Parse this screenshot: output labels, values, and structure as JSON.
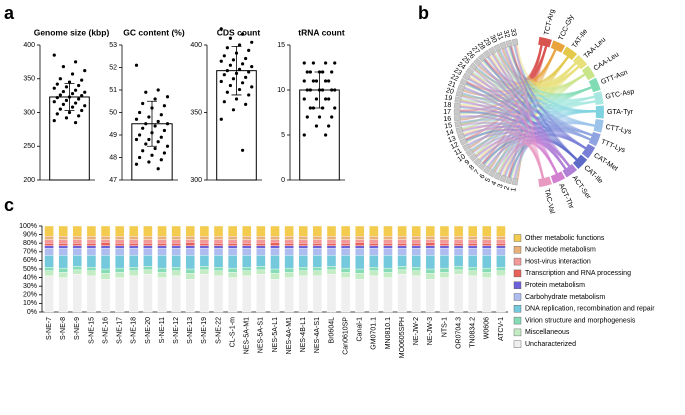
{
  "chart_data": [
    {
      "type": "bar",
      "panel": "a",
      "title": "Genome size (kbp)",
      "ylim": [
        200,
        400
      ],
      "yticks": [
        200,
        250,
        300,
        350,
        400
      ],
      "values": [
        323
      ],
      "errors": [
        20
      ],
      "bar_color": "#ffffff",
      "point_color": "#000000",
      "points": [
        385,
        375,
        368,
        362,
        357,
        350,
        348,
        345,
        342,
        340,
        338,
        336,
        333,
        331,
        330,
        328,
        326,
        325,
        323,
        322,
        320,
        318,
        316,
        314,
        312,
        310,
        308,
        305,
        303,
        300,
        298,
        295,
        292,
        288,
        285
      ]
    },
    {
      "type": "bar",
      "title": "GC content (%)",
      "ylim": [
        47,
        53
      ],
      "yticks": [
        47,
        48,
        49,
        50,
        51,
        52,
        53
      ],
      "values": [
        49.5
      ],
      "errors": [
        1.0
      ],
      "bar_color": "#ffffff",
      "point_color": "#000000",
      "points": [
        52.1,
        51.0,
        50.9,
        50.7,
        50.6,
        50.4,
        50.3,
        50.2,
        50.0,
        49.9,
        49.8,
        49.7,
        49.6,
        49.5,
        49.5,
        49.4,
        49.3,
        49.2,
        49.1,
        49.0,
        48.9,
        48.8,
        48.8,
        48.7,
        48.6,
        48.5,
        48.4,
        48.3,
        48.2,
        48.1,
        48.0,
        47.9,
        47.8,
        47.7,
        47.5
      ]
    },
    {
      "type": "bar",
      "title": "CDS count",
      "ylim": [
        300,
        400
      ],
      "yticks": [
        300,
        350,
        400
      ],
      "values": [
        381
      ],
      "errors": [
        18
      ],
      "bar_color": "#ffffff",
      "point_color": "#000000",
      "points": [
        412,
        408,
        405,
        402,
        400,
        398,
        396,
        394,
        392,
        390,
        389,
        388,
        386,
        385,
        384,
        382,
        381,
        380,
        379,
        378,
        376,
        375,
        373,
        372,
        370,
        369,
        367,
        365,
        363,
        360,
        358,
        356,
        352,
        345,
        322
      ]
    },
    {
      "type": "bar",
      "title": "tRNA count",
      "ylim": [
        0,
        15
      ],
      "yticks": [
        0,
        5,
        10,
        15
      ],
      "values": [
        10
      ],
      "errors": [
        2
      ],
      "bar_color": "#ffffff",
      "point_color": "#000000",
      "points": [
        13,
        13,
        13,
        13,
        12,
        12,
        12,
        12,
        12,
        11,
        11,
        11,
        11,
        11,
        10,
        10,
        10,
        10,
        10,
        10,
        9,
        9,
        9,
        9,
        8,
        8,
        8,
        8,
        7,
        7,
        7,
        6,
        6,
        5,
        5
      ]
    },
    {
      "type": "chord",
      "panel": "b",
      "labels": [
        "TCT-Arg",
        "TCC-Gly",
        "TAT-Ile",
        "TAA-Leu",
        "CAA-Leu",
        "GTT-Asn",
        "GTC-Asp",
        "GTA-Tyr",
        "CTT-Lys",
        "TTT-Lys",
        "CAT-Met",
        "CAT-Ile",
        "ACT-Ser",
        "AGT-Thr",
        "TAC-Val"
      ],
      "colors": [
        "#d9534f",
        "#e8a33d",
        "#e3c84a",
        "#e8e07a",
        "#c9e58a",
        "#7fdcb4",
        "#a8e8e0",
        "#7fd3e0",
        "#9cc3ea",
        "#8fa3e0",
        "#7a7fd6",
        "#5e6bc9",
        "#b07fd6",
        "#d27fd0",
        "#e89ac0"
      ],
      "nodes": [
        "1",
        "2",
        "3",
        "4",
        "5",
        "6",
        "7",
        "8",
        "9",
        "10",
        "11",
        "12",
        "13",
        "14",
        "15",
        "16",
        "17",
        "18",
        "19",
        "20",
        "21",
        "22",
        "23",
        "24",
        "25",
        "26",
        "27",
        "28",
        "29",
        "30",
        "31",
        "32",
        "33"
      ]
    },
    {
      "type": "bar",
      "stacked": true,
      "panel": "c",
      "ylim": [
        0,
        100
      ],
      "yticks": [
        {
          "value": 0,
          "label": "0%"
        },
        {
          "value": 10,
          "label": "10%"
        },
        {
          "value": 20,
          "label": "20%"
        },
        {
          "value": 30,
          "label": "30%"
        },
        {
          "value": 40,
          "label": "40%"
        },
        {
          "value": 50,
          "label": "50%"
        },
        {
          "value": 60,
          "label": "60%"
        },
        {
          "value": 70,
          "label": "70%"
        },
        {
          "value": 80,
          "label": "80%"
        },
        {
          "value": 90,
          "label": "90%"
        },
        {
          "value": 100,
          "label": "100%"
        }
      ],
      "categories": [
        "S-NE-7",
        "S-NE-8",
        "S-NE-9",
        "S-NE-15",
        "S-NE-16",
        "S-NE-17",
        "S-NE-18",
        "S-NE-20",
        "S-NE-11",
        "S-NE-12",
        "S-NE-13",
        "S-NE-19",
        "S-NE-22",
        "CL-S-1-m",
        "NES-5A-M1",
        "NES-5A-S1",
        "NES-5A-L1",
        "NES-4A-M1",
        "NES-4B-L1",
        "NES-4A-S1",
        "Br0604L",
        "Can0610SP",
        "Canal-1",
        "GM0701.1",
        "MN0810.1",
        "MO0605SPH",
        "NE-JW-2",
        "NE-JW-3",
        "NTS-1",
        "OR0704.3",
        "TN0834.2",
        "W0606",
        "ATCV-1"
      ],
      "series": [
        {
          "name": "Uncharacterized",
          "color": "#efefef",
          "values": [
            42,
            40,
            44,
            42,
            38,
            40,
            42,
            44,
            40,
            42,
            38,
            44,
            42,
            40,
            42,
            44,
            38,
            40,
            42,
            42,
            44,
            40,
            38,
            42,
            40,
            44,
            42,
            38,
            40,
            44,
            42,
            40,
            42
          ]
        },
        {
          "name": "Miscellaneous",
          "color": "#c4ecc4",
          "values": [
            6,
            6,
            5,
            6,
            7,
            6,
            6,
            5,
            6,
            6,
            7,
            5,
            6,
            6,
            6,
            5,
            7,
            6,
            6,
            6,
            5,
            6,
            7,
            6,
            6,
            5,
            6,
            7,
            6,
            5,
            6,
            6,
            6
          ]
        },
        {
          "name": "Virion structure and morphogenesis",
          "color": "#86dcb6",
          "values": [
            4,
            5,
            4,
            4,
            5,
            5,
            4,
            4,
            5,
            4,
            5,
            4,
            4,
            5,
            4,
            4,
            5,
            5,
            4,
            4,
            4,
            5,
            5,
            4,
            5,
            4,
            4,
            5,
            5,
            4,
            4,
            5,
            4
          ]
        },
        {
          "name": "DNA replication, recombination and repair",
          "color": "#74c9dc",
          "values": [
            14,
            15,
            13,
            14,
            16,
            15,
            14,
            13,
            15,
            14,
            16,
            13,
            14,
            15,
            14,
            13,
            16,
            15,
            14,
            14,
            13,
            15,
            16,
            14,
            15,
            13,
            14,
            16,
            15,
            13,
            14,
            15,
            14
          ]
        },
        {
          "name": "Carbohydrate metabolism",
          "color": "#aebcf0",
          "values": [
            8,
            8,
            8,
            8,
            8,
            8,
            8,
            8,
            8,
            8,
            8,
            8,
            8,
            8,
            8,
            8,
            8,
            8,
            8,
            8,
            8,
            8,
            8,
            8,
            8,
            8,
            8,
            8,
            8,
            8,
            8,
            8,
            8
          ]
        },
        {
          "name": "Protein metabolism",
          "color": "#6d62d8",
          "values": [
            3,
            3,
            3,
            3,
            3,
            3,
            3,
            3,
            3,
            3,
            3,
            3,
            3,
            3,
            3,
            3,
            3,
            3,
            3,
            3,
            3,
            3,
            3,
            3,
            3,
            3,
            3,
            3,
            3,
            3,
            3,
            3,
            3
          ]
        },
        {
          "name": "Transcription and RNA processing",
          "color": "#e8605a",
          "values": [
            3,
            3,
            3,
            3,
            4,
            3,
            3,
            3,
            3,
            3,
            4,
            3,
            3,
            3,
            3,
            3,
            4,
            3,
            3,
            3,
            3,
            3,
            4,
            3,
            3,
            3,
            3,
            4,
            3,
            3,
            3,
            3,
            3
          ]
        },
        {
          "name": "Host-virus interaction",
          "color": "#f29a9a",
          "values": [
            4,
            4,
            4,
            4,
            3,
            4,
            4,
            4,
            4,
            4,
            3,
            4,
            4,
            4,
            4,
            4,
            3,
            4,
            4,
            4,
            4,
            4,
            3,
            4,
            4,
            4,
            4,
            3,
            4,
            4,
            4,
            4,
            4
          ]
        },
        {
          "name": "Nucleotide metabolism",
          "color": "#eab07a",
          "values": [
            4,
            4,
            4,
            4,
            4,
            4,
            4,
            4,
            4,
            4,
            4,
            4,
            4,
            4,
            4,
            4,
            4,
            4,
            4,
            4,
            4,
            4,
            4,
            4,
            4,
            4,
            4,
            4,
            4,
            4,
            4,
            4,
            4
          ]
        },
        {
          "name": "Other metabolic functions",
          "color": "#f3cb4e",
          "values": [
            12,
            12,
            12,
            12,
            12,
            12,
            12,
            12,
            12,
            12,
            12,
            12,
            12,
            12,
            12,
            12,
            12,
            12,
            12,
            12,
            12,
            12,
            12,
            12,
            12,
            12,
            12,
            12,
            12,
            12,
            12,
            12,
            12
          ]
        }
      ]
    }
  ]
}
